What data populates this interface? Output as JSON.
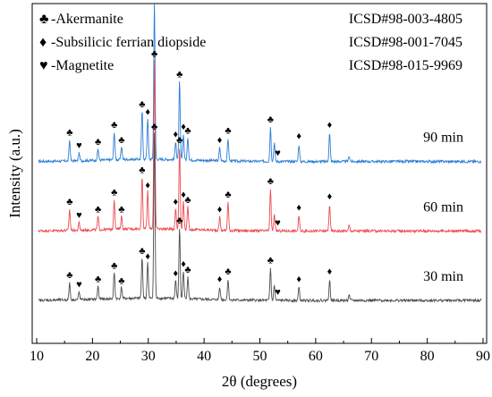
{
  "chart_data": {
    "type": "line",
    "title": "",
    "xlabel": "2θ (degrees)",
    "ylabel": "Intensity (a.u.)",
    "xlim": [
      10,
      90
    ],
    "x_ticks": [
      10,
      20,
      30,
      40,
      50,
      60,
      70,
      80,
      90
    ],
    "y_ticks_shown": false,
    "grid": false,
    "legend": [
      {
        "symbol": "♣",
        "label": "-Akermanite",
        "ref": "ICSD#98-003-4805"
      },
      {
        "symbol": "♦",
        "label": "-Subsilicic ferrian diopside",
        "ref": "ICSD#98-001-7045"
      },
      {
        "symbol": "♥",
        "label": "-Magnetite",
        "ref": "ICSD#98-015-9969"
      }
    ],
    "series": [
      {
        "name": "90 min",
        "color": "#2b7fd4",
        "baseline": 4.7,
        "peaks": [
          [
            15.9,
            0.55
          ],
          [
            17.6,
            0.2
          ],
          [
            21.0,
            0.3
          ],
          [
            23.9,
            0.75
          ],
          [
            25.2,
            0.35
          ],
          [
            28.9,
            1.3
          ],
          [
            29.9,
            1.1
          ],
          [
            31.1,
            4.2
          ],
          [
            34.9,
            0.5
          ],
          [
            35.6,
            2.1
          ],
          [
            36.3,
            0.7
          ],
          [
            37.1,
            0.6
          ],
          [
            42.8,
            0.35
          ],
          [
            44.3,
            0.6
          ],
          [
            51.9,
            0.9
          ],
          [
            52.6,
            0.5
          ],
          [
            57.0,
            0.45
          ],
          [
            62.5,
            0.75
          ],
          [
            66.0,
            0.15
          ]
        ]
      },
      {
        "name": "60 min",
        "color": "#ec4a52",
        "baseline": 2.85,
        "peaks": [
          [
            15.9,
            0.55
          ],
          [
            17.6,
            0.2
          ],
          [
            21.0,
            0.35
          ],
          [
            23.9,
            0.8
          ],
          [
            25.2,
            0.35
          ],
          [
            28.9,
            1.4
          ],
          [
            29.9,
            1.0
          ],
          [
            31.1,
            4.5
          ],
          [
            34.9,
            0.55
          ],
          [
            35.6,
            2.2
          ],
          [
            36.3,
            0.75
          ],
          [
            37.1,
            0.6
          ],
          [
            42.8,
            0.35
          ],
          [
            44.3,
            0.75
          ],
          [
            51.9,
            1.1
          ],
          [
            52.6,
            0.45
          ],
          [
            57.0,
            0.4
          ],
          [
            62.5,
            0.7
          ],
          [
            66.0,
            0.15
          ]
        ]
      },
      {
        "name": "30 min",
        "color": "#4d4d4d",
        "baseline": 1.0,
        "peaks": [
          [
            15.9,
            0.45
          ],
          [
            17.6,
            0.2
          ],
          [
            21.0,
            0.35
          ],
          [
            23.9,
            0.7
          ],
          [
            25.2,
            0.3
          ],
          [
            28.9,
            1.1
          ],
          [
            29.9,
            0.95
          ],
          [
            31.1,
            4.4
          ],
          [
            34.9,
            0.5
          ],
          [
            35.6,
            1.9
          ],
          [
            36.3,
            0.75
          ],
          [
            37.1,
            0.6
          ],
          [
            42.8,
            0.35
          ],
          [
            44.3,
            0.55
          ],
          [
            51.9,
            0.85
          ],
          [
            52.6,
            0.4
          ],
          [
            57.0,
            0.35
          ],
          [
            62.5,
            0.55
          ],
          [
            66.0,
            0.15
          ]
        ]
      }
    ],
    "phase_marks": [
      {
        "x": 15.9,
        "symbol": "♣"
      },
      {
        "x": 17.6,
        "symbol": "♥"
      },
      {
        "x": 21.0,
        "symbol": "♣"
      },
      {
        "x": 23.9,
        "symbol": "♣"
      },
      {
        "x": 25.2,
        "symbol": "♣"
      },
      {
        "x": 28.9,
        "symbol": "♣"
      },
      {
        "x": 29.9,
        "symbol": "♦"
      },
      {
        "x": 31.1,
        "symbol": "♣"
      },
      {
        "x": 34.9,
        "symbol": "♦"
      },
      {
        "x": 35.6,
        "symbol": "♣"
      },
      {
        "x": 36.3,
        "symbol": "♦"
      },
      {
        "x": 37.1,
        "symbol": "♣"
      },
      {
        "x": 42.8,
        "symbol": "♦"
      },
      {
        "x": 44.3,
        "symbol": "♣"
      },
      {
        "x": 51.9,
        "symbol": "♣"
      },
      {
        "x": 53.2,
        "symbol": "♥"
      },
      {
        "x": 57.0,
        "symbol": "♦"
      },
      {
        "x": 62.5,
        "symbol": "♦"
      }
    ]
  }
}
